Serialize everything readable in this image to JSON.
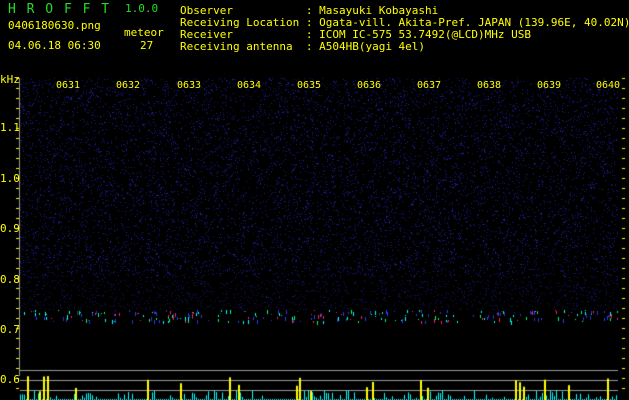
{
  "header": {
    "app_title": "H R O F F T",
    "version": "1.0.0",
    "filename": "0406180630.png",
    "datetime": "04.06.18 06:30",
    "meteor_label": "meteor",
    "meteor_count": "27"
  },
  "info": [
    {
      "label": "Observer          ",
      "value": ": Masayuki Kobayashi"
    },
    {
      "label": "Receiving Location",
      "value": ": Ogata-vill. Akita-Pref. JAPAN (139.96E, 40.02N)"
    },
    {
      "label": "Receiver          ",
      "value": ": ICOM IC-575 53.7492(@LCD)MHz USB"
    },
    {
      "label": "Receiving antenna ",
      "value": ": A504HB(yagi 4el)"
    }
  ],
  "axis": {
    "unit": "kHz",
    "freq_labels": [
      "1.1",
      "1.0",
      "0.9",
      "0.8",
      "0.7",
      "0.6"
    ],
    "time_labels": [
      "0631",
      "0632",
      "0633",
      "0634",
      "0635",
      "0636",
      "0637",
      "0638",
      "0639",
      "0640"
    ]
  },
  "colors": {
    "text": "#ffff00",
    "title": "#22dd22",
    "noise": "#1a1a8c",
    "bar_yellow": "#ffff00",
    "bar_cyan": "#00ffff",
    "grid": "#999999"
  }
}
